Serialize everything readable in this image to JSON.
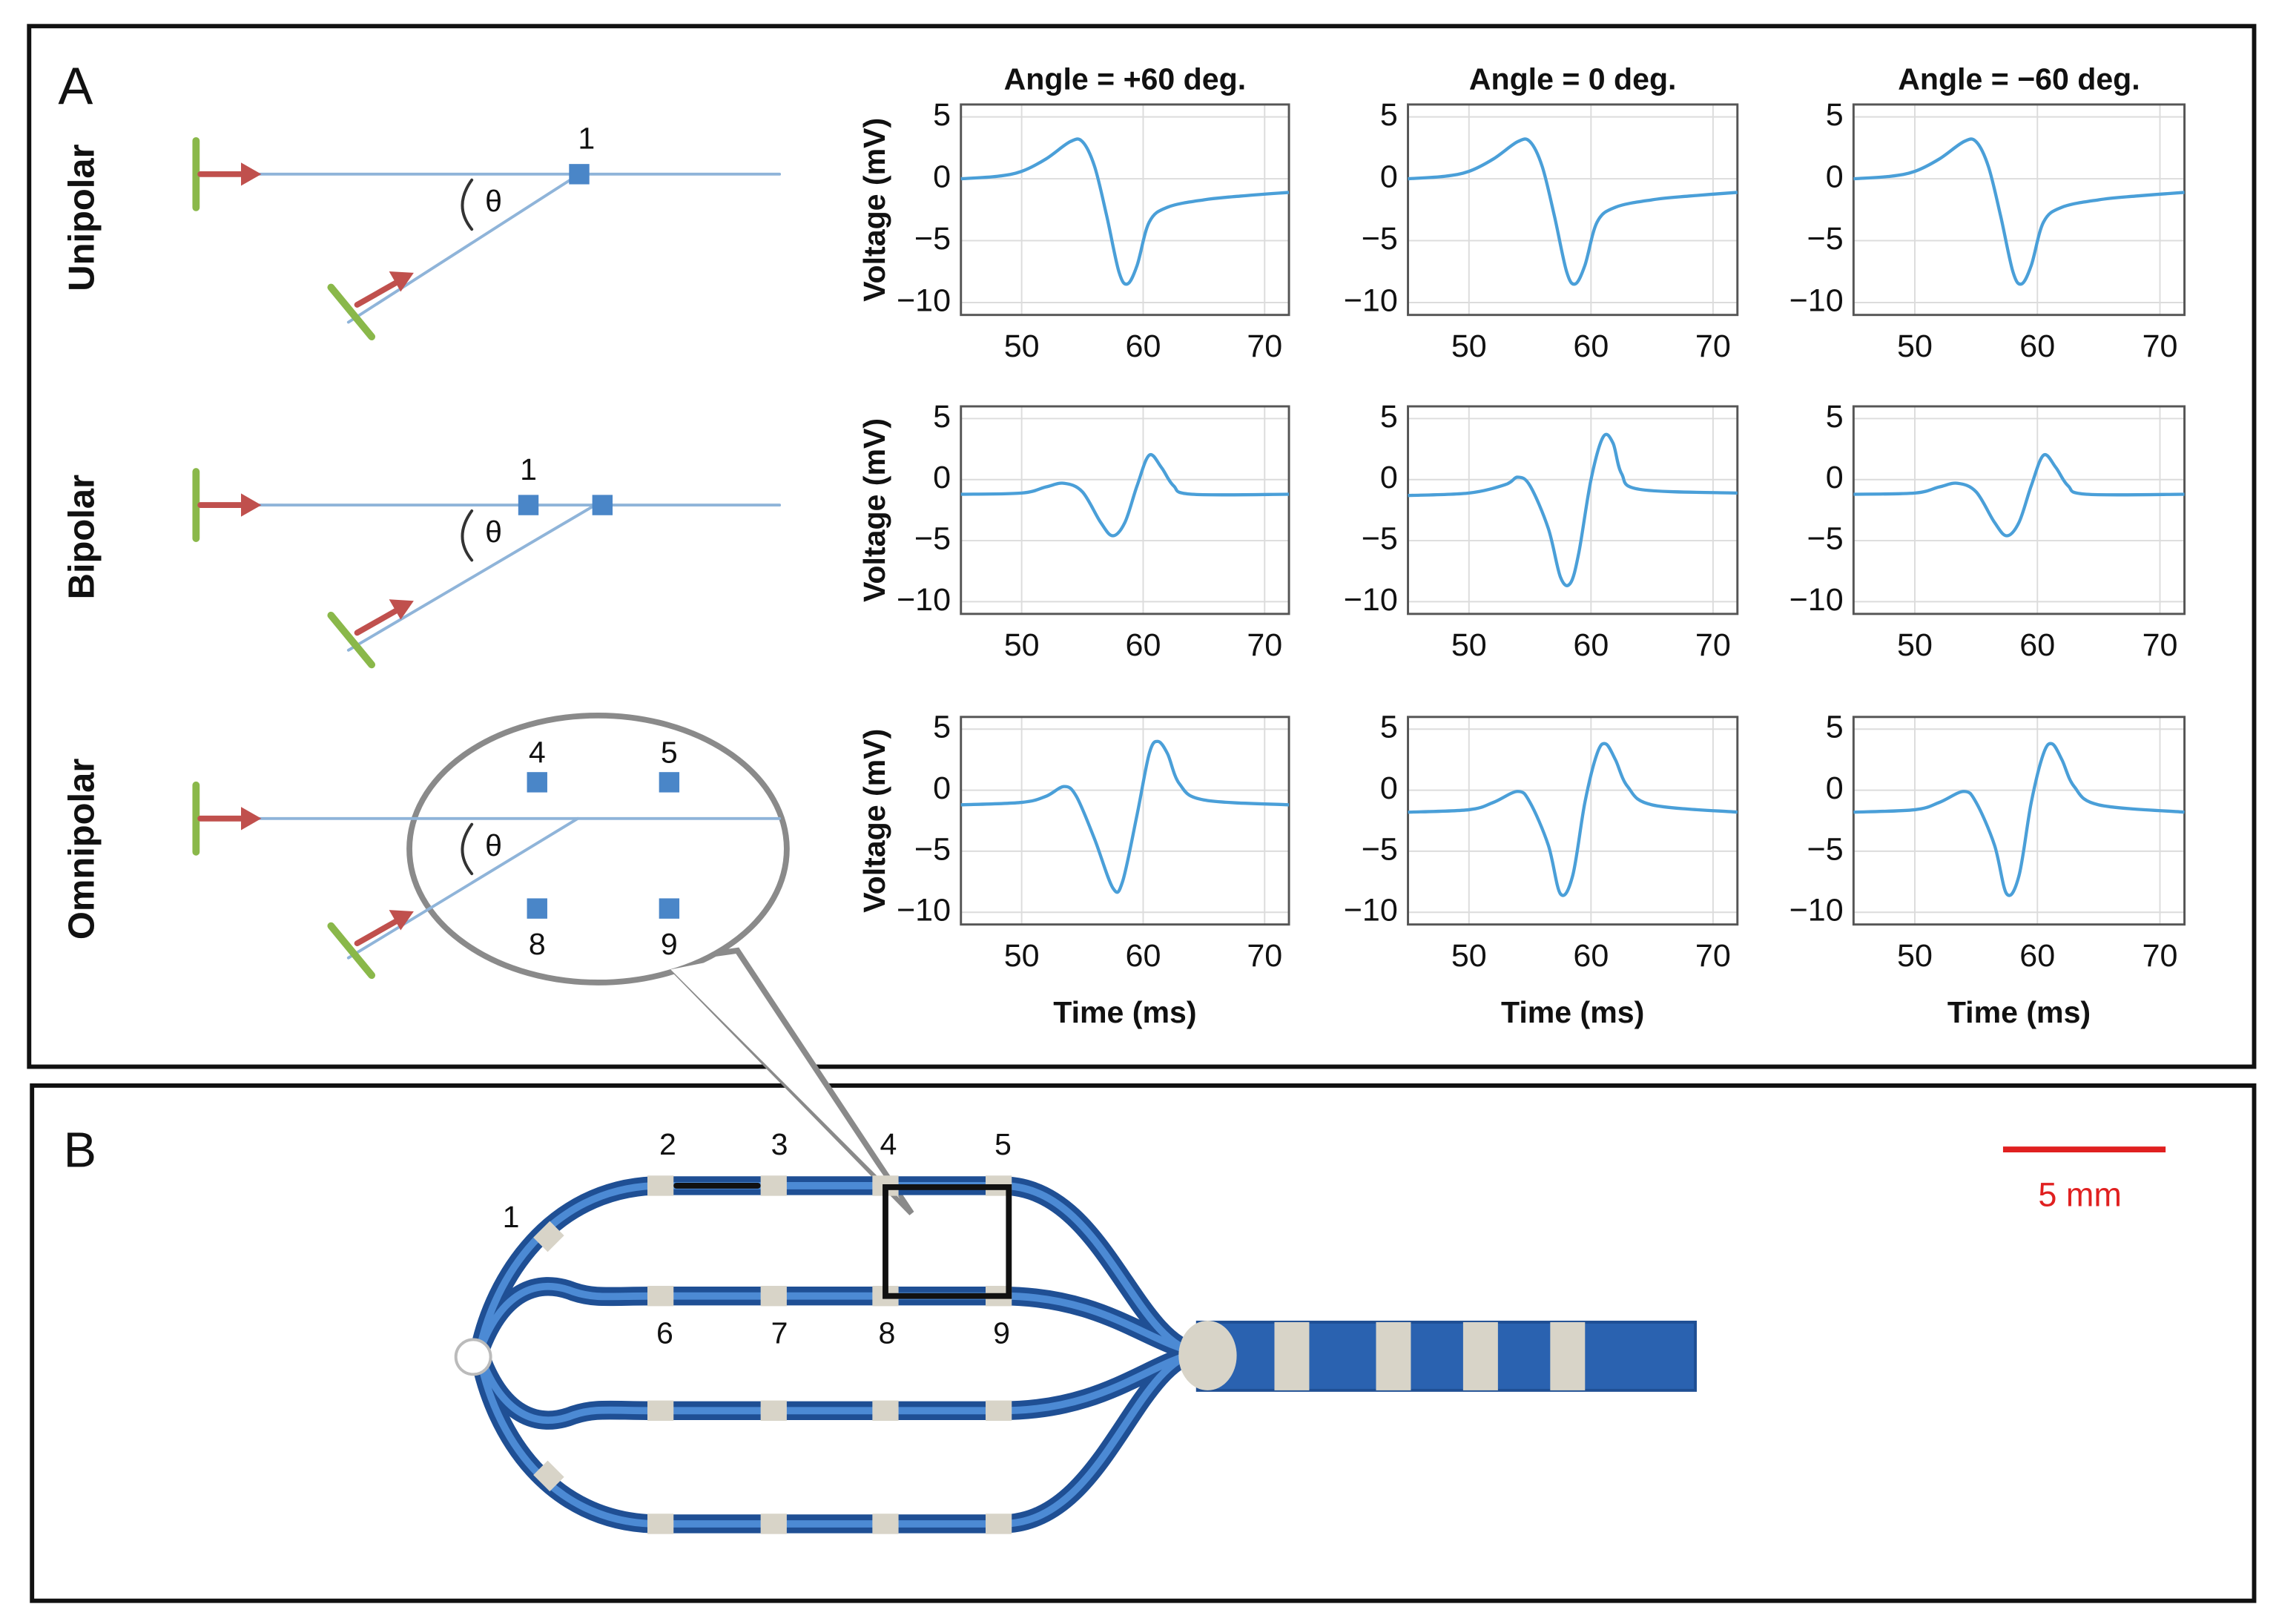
{
  "panel_a": {
    "label": "A",
    "rows": [
      "Unipolar",
      "Bipolar",
      "Omnipolar"
    ],
    "theta": "θ",
    "unipolar_electrodes": [
      "1"
    ],
    "bipolar_electrodes": [
      "1"
    ],
    "omnipolar_electrodes": [
      "4",
      "5",
      "8",
      "9"
    ]
  },
  "panel_b": {
    "label": "B",
    "electrodes": [
      "1",
      "2",
      "3",
      "4",
      "5",
      "6",
      "7",
      "8",
      "9"
    ],
    "scale_bar": "5 mm"
  },
  "chart_data": [
    {
      "type": "line",
      "title": "Angle = +60 deg.",
      "ylabel": "Voltage (mV)",
      "color": "#4a9fd8",
      "x": [
        45,
        48,
        50,
        52,
        54,
        55,
        56,
        57,
        58,
        58.7,
        59.5,
        60.5,
        62,
        65,
        68,
        72
      ],
      "values": [
        0,
        0.2,
        0.6,
        1.6,
        3,
        3,
        1,
        -3,
        -7.5,
        -8.5,
        -7,
        -3.5,
        -2.3,
        -1.7,
        -1.4,
        -1.1
      ],
      "xlim": [
        45,
        72
      ],
      "ylim": [
        -11,
        6
      ],
      "xticks": [
        50,
        60,
        70
      ],
      "yticks": [
        {
          "value": -10,
          "label": "−10"
        },
        {
          "value": -5,
          "label": "−5"
        },
        0,
        5
      ],
      "grid": true
    },
    {
      "type": "line",
      "title": "Angle = 0 deg.",
      "color": "#4a9fd8",
      "x": [
        45,
        48,
        50,
        52,
        54,
        55,
        56,
        57,
        58,
        58.7,
        59.5,
        60.5,
        62,
        65,
        68,
        72
      ],
      "values": [
        0,
        0.2,
        0.6,
        1.6,
        3,
        3,
        1,
        -3,
        -7.5,
        -8.5,
        -7,
        -3.5,
        -2.3,
        -1.7,
        -1.4,
        -1.1
      ],
      "xlim": [
        45,
        72
      ],
      "ylim": [
        -11,
        6
      ],
      "xticks": [
        50,
        60,
        70
      ],
      "yticks": [
        {
          "value": -10,
          "label": "−10"
        },
        {
          "value": -5,
          "label": "−5"
        },
        0,
        5
      ],
      "grid": true
    },
    {
      "type": "line",
      "title": "Angle = −60 deg.",
      "color": "#4a9fd8",
      "x": [
        45,
        48,
        50,
        52,
        54,
        55,
        56,
        57,
        58,
        58.7,
        59.5,
        60.5,
        62,
        65,
        68,
        72
      ],
      "values": [
        0,
        0.2,
        0.6,
        1.6,
        3,
        3,
        1,
        -3,
        -7.5,
        -8.5,
        -7,
        -3.5,
        -2.3,
        -1.7,
        -1.4,
        -1.1
      ],
      "xlim": [
        45,
        72
      ],
      "ylim": [
        -11,
        6
      ],
      "xticks": [
        50,
        60,
        70
      ],
      "yticks": [
        {
          "value": -10,
          "label": "−10"
        },
        {
          "value": -5,
          "label": "−5"
        },
        0,
        5
      ],
      "grid": true
    },
    {
      "type": "line",
      "ylabel": "Voltage (mV)",
      "color": "#4a9fd8",
      "x": [
        45,
        50,
        52,
        53.5,
        55,
        56.5,
        57.5,
        58.5,
        59.5,
        60.5,
        61.5,
        62.5,
        64,
        72
      ],
      "values": [
        -1.2,
        -1.1,
        -0.6,
        -0.3,
        -1,
        -3.5,
        -4.6,
        -3.5,
        -0.5,
        2,
        1,
        -0.5,
        -1.2,
        -1.2
      ],
      "xlim": [
        45,
        72
      ],
      "ylim": [
        -11,
        6
      ],
      "xticks": [
        50,
        60,
        70
      ],
      "yticks": [
        {
          "value": -10,
          "label": "−10"
        },
        {
          "value": -5,
          "label": "−5"
        },
        0,
        5
      ],
      "grid": true
    },
    {
      "type": "line",
      "color": "#4a9fd8",
      "x": [
        45,
        50,
        53,
        54,
        55,
        56.5,
        57.5,
        58.3,
        59,
        60,
        61,
        61.8,
        62.5,
        64,
        72
      ],
      "values": [
        -1.3,
        -1.1,
        -0.4,
        0.2,
        -0.5,
        -4,
        -8,
        -8.5,
        -6,
        0,
        3.5,
        3,
        0.5,
        -0.8,
        -1.1
      ],
      "xlim": [
        45,
        72
      ],
      "ylim": [
        -11,
        6
      ],
      "xticks": [
        50,
        60,
        70
      ],
      "yticks": [
        {
          "value": -10,
          "label": "−10"
        },
        {
          "value": -5,
          "label": "−5"
        },
        0,
        5
      ],
      "grid": true
    },
    {
      "type": "line",
      "color": "#4a9fd8",
      "x": [
        45,
        50,
        52,
        53.5,
        55,
        56.5,
        57.5,
        58.5,
        59.5,
        60.5,
        61.5,
        62.5,
        64,
        72
      ],
      "values": [
        -1.2,
        -1.1,
        -0.6,
        -0.3,
        -1,
        -3.5,
        -4.6,
        -3.5,
        -0.5,
        2,
        1,
        -0.5,
        -1.2,
        -1.2
      ],
      "xlim": [
        45,
        72
      ],
      "ylim": [
        -11,
        6
      ],
      "xticks": [
        50,
        60,
        70
      ],
      "yticks": [
        {
          "value": -10,
          "label": "−10"
        },
        {
          "value": -5,
          "label": "−5"
        },
        0,
        5
      ],
      "grid": true
    },
    {
      "type": "line",
      "ylabel": "Voltage (mV)",
      "xlabel": "Time (ms)",
      "color": "#4a9fd8",
      "x": [
        45,
        50,
        52,
        53.5,
        54.5,
        56,
        57.5,
        58.3,
        59.5,
        60.5,
        61.2,
        62,
        63,
        65,
        72
      ],
      "values": [
        -1.2,
        -1,
        -0.5,
        0.3,
        -0.5,
        -4,
        -8,
        -7.5,
        -2,
        3,
        4,
        3,
        0.5,
        -0.8,
        -1.2
      ],
      "xlim": [
        45,
        72
      ],
      "ylim": [
        -11,
        6
      ],
      "xticks": [
        50,
        60,
        70
      ],
      "yticks": [
        {
          "value": -10,
          "label": "−10"
        },
        {
          "value": -5,
          "label": "−5"
        },
        0,
        5
      ],
      "grid": true
    },
    {
      "type": "line",
      "xlabel": "Time (ms)",
      "color": "#4a9fd8",
      "x": [
        45,
        50,
        52,
        54,
        55,
        56.5,
        57.5,
        58.5,
        59.5,
        60.5,
        61.2,
        62,
        63,
        65,
        72
      ],
      "values": [
        -1.8,
        -1.6,
        -1,
        -0.1,
        -1,
        -4.5,
        -8.5,
        -7,
        -1,
        3,
        3.8,
        2.5,
        0.3,
        -1.2,
        -1.8
      ],
      "xlim": [
        45,
        72
      ],
      "ylim": [
        -11,
        6
      ],
      "xticks": [
        50,
        60,
        70
      ],
      "yticks": [
        {
          "value": -10,
          "label": "−10"
        },
        {
          "value": -5,
          "label": "−5"
        },
        0,
        5
      ],
      "grid": true
    },
    {
      "type": "line",
      "xlabel": "Time (ms)",
      "color": "#4a9fd8",
      "x": [
        45,
        50,
        52,
        54,
        55,
        56.5,
        57.5,
        58.5,
        59.5,
        60.5,
        61.2,
        62,
        63,
        65,
        72
      ],
      "values": [
        -1.8,
        -1.6,
        -1,
        -0.1,
        -1,
        -4.5,
        -8.5,
        -7,
        -1,
        3,
        3.8,
        2.5,
        0.3,
        -1.2,
        -1.8
      ],
      "xlim": [
        45,
        72
      ],
      "ylim": [
        -11,
        6
      ],
      "xticks": [
        50,
        60,
        70
      ],
      "yticks": [
        {
          "value": -10,
          "label": "−10"
        },
        {
          "value": -5,
          "label": "−5"
        },
        0,
        5
      ],
      "grid": true
    }
  ]
}
